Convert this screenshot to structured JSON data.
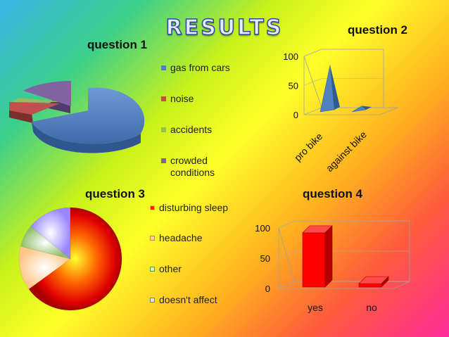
{
  "title": "RESULTS",
  "chart_data": [
    {
      "id": "q1",
      "type": "pie",
      "title": "question 1",
      "categories": [
        "gas from cars",
        "noise",
        "accidents",
        "crowded conditions"
      ],
      "values": [
        75,
        10,
        2,
        13
      ],
      "colors": [
        "#4f81bd",
        "#c0504d",
        "#9bbb59",
        "#8064a2"
      ]
    },
    {
      "id": "q2",
      "type": "bar",
      "title": "question 2",
      "categories": [
        "pro bike",
        "against bike"
      ],
      "values": [
        85,
        15
      ],
      "ylim": [
        0,
        100
      ],
      "yticks": [
        0,
        50,
        100
      ],
      "color": "#4f81bd"
    },
    {
      "id": "q3",
      "type": "pie",
      "title": "question 3",
      "categories": [
        "disturbing sleep",
        "headache",
        "other",
        "doesn't affect"
      ],
      "values": [
        65,
        14,
        7,
        14
      ],
      "colors": [
        "#ff1a00",
        "#ffd39b",
        "#a9d48a",
        "#b3a2ff"
      ]
    },
    {
      "id": "q4",
      "type": "bar",
      "title": "question 4",
      "categories": [
        "yes",
        "no"
      ],
      "values": [
        92,
        8
      ],
      "ylim": [
        0,
        100
      ],
      "yticks": [
        0,
        50,
        100
      ],
      "color": "#ff0000"
    }
  ]
}
